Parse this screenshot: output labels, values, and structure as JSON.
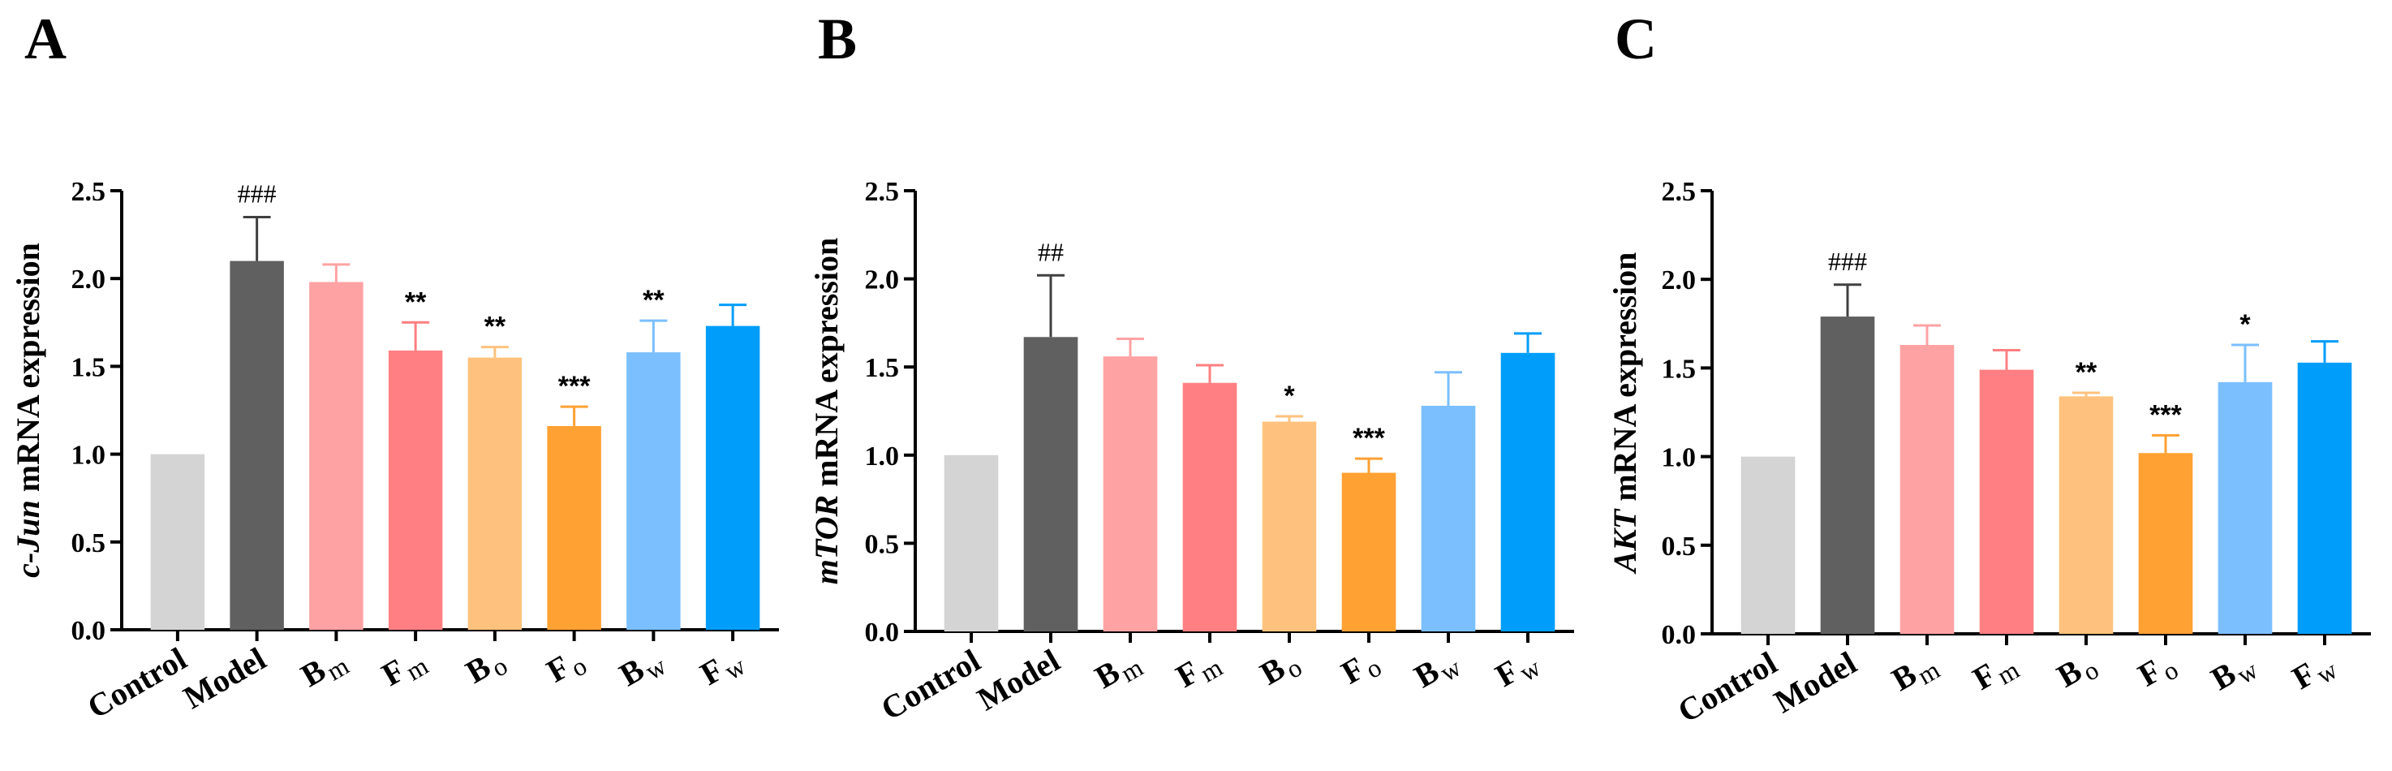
{
  "chart_data": [
    {
      "type": "bar",
      "panel": "A",
      "gene": "c-Jun",
      "ylabel_suffix": " mRNA expression",
      "categories": [
        {
          "main": "Control",
          "sub": ""
        },
        {
          "main": "Model",
          "sub": ""
        },
        {
          "main": "B",
          "sub": "m"
        },
        {
          "main": "F",
          "sub": "m"
        },
        {
          "main": "B",
          "sub": "o"
        },
        {
          "main": "F",
          "sub": "o"
        },
        {
          "main": "B",
          "sub": "w"
        },
        {
          "main": "F",
          "sub": "w"
        }
      ],
      "values": [
        1.0,
        2.1,
        1.98,
        1.59,
        1.55,
        1.16,
        1.58,
        1.73
      ],
      "errors": [
        0.0,
        0.25,
        0.1,
        0.16,
        0.06,
        0.11,
        0.18,
        0.12
      ],
      "annotations": [
        "",
        "###",
        "",
        "**",
        "**",
        "***",
        "**",
        ""
      ],
      "ylim": [
        0,
        2.5
      ],
      "yticks": [
        "0.0",
        "0.5",
        "1.0",
        "1.5",
        "2.0",
        "2.5"
      ]
    },
    {
      "type": "bar",
      "panel": "B",
      "gene": "mTOR",
      "ylabel_suffix": " mRNA expression",
      "categories": [
        {
          "main": "Control",
          "sub": ""
        },
        {
          "main": "Model",
          "sub": ""
        },
        {
          "main": "B",
          "sub": "m"
        },
        {
          "main": "F",
          "sub": "m"
        },
        {
          "main": "B",
          "sub": "o"
        },
        {
          "main": "F",
          "sub": "o"
        },
        {
          "main": "B",
          "sub": "w"
        },
        {
          "main": "F",
          "sub": "w"
        }
      ],
      "values": [
        1.0,
        1.67,
        1.56,
        1.41,
        1.19,
        0.9,
        1.28,
        1.58
      ],
      "errors": [
        0.0,
        0.35,
        0.1,
        0.1,
        0.03,
        0.08,
        0.19,
        0.11
      ],
      "annotations": [
        "",
        "##",
        "",
        "",
        "*",
        "***",
        "",
        ""
      ],
      "ylim": [
        0,
        2.5
      ],
      "yticks": [
        "0.0",
        "0.5",
        "1.0",
        "1.5",
        "2.0",
        "2.5"
      ]
    },
    {
      "type": "bar",
      "panel": "C",
      "gene": "AKT",
      "ylabel_suffix": " mRNA expression",
      "categories": [
        {
          "main": "Control",
          "sub": ""
        },
        {
          "main": "Model",
          "sub": ""
        },
        {
          "main": "B",
          "sub": "m"
        },
        {
          "main": "F",
          "sub": "m"
        },
        {
          "main": "B",
          "sub": "o"
        },
        {
          "main": "F",
          "sub": "o"
        },
        {
          "main": "B",
          "sub": "w"
        },
        {
          "main": "F",
          "sub": "w"
        }
      ],
      "values": [
        1.0,
        1.79,
        1.63,
        1.49,
        1.34,
        1.02,
        1.42,
        1.53
      ],
      "errors": [
        0.0,
        0.18,
        0.11,
        0.11,
        0.02,
        0.1,
        0.21,
        0.12
      ],
      "annotations": [
        "",
        "###",
        "",
        "",
        "**",
        "***",
        "*",
        ""
      ],
      "ylim": [
        0,
        2.5
      ],
      "yticks": [
        "0.0",
        "0.5",
        "1.0",
        "1.5",
        "2.0",
        "2.5"
      ]
    }
  ],
  "colors": {
    "bars": [
      "#d4d4d4",
      "#606060",
      "#ffa2a4",
      "#ff7f82",
      "#ffc27e",
      "#ffa133",
      "#7bbfff",
      "#019dfb"
    ],
    "axis": "#000000"
  }
}
